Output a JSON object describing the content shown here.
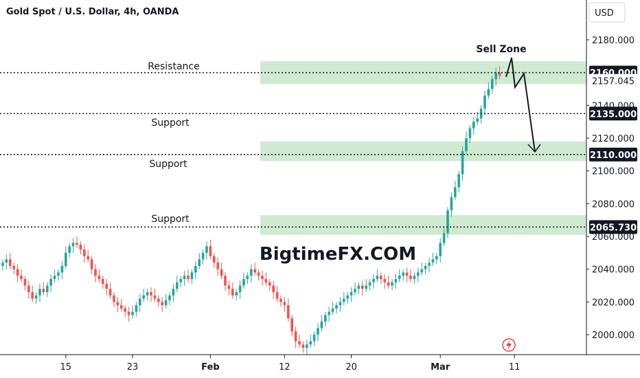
{
  "chart_data": {
    "type": "candlestick",
    "title": "Gold Spot / U.S. Dollar, 4h, OANDA",
    "currency": "USD",
    "ylim": [
      1988,
      2192
    ],
    "y_ticks": [
      2000,
      2020,
      2040,
      2060,
      2080,
      2100,
      2120,
      2140,
      2180
    ],
    "y_tick_labels": [
      "2000.000",
      "2020.000",
      "2040.000",
      "2060.000",
      "2080.000",
      "2100.000",
      "2120.000",
      "2140.000",
      "2180.000"
    ],
    "x_ticks": [
      {
        "label": "15",
        "idx": 17,
        "bold": false
      },
      {
        "label": "23",
        "idx": 35,
        "bold": false
      },
      {
        "label": "Feb",
        "idx": 56,
        "bold": true
      },
      {
        "label": "12",
        "idx": 76,
        "bold": false
      },
      {
        "label": "20",
        "idx": 94,
        "bold": false
      },
      {
        "label": "Mar",
        "idx": 118,
        "bold": true
      },
      {
        "label": "11",
        "idx": 138,
        "bold": false
      }
    ],
    "closes": [
      2044,
      2046,
      2042,
      2040,
      2036,
      2034,
      2030,
      2026,
      2022,
      2024,
      2028,
      2026,
      2030,
      2034,
      2036,
      2038,
      2042,
      2050,
      2054,
      2056,
      2055,
      2052,
      2048,
      2046,
      2040,
      2036,
      2034,
      2031,
      2028,
      2024,
      2020,
      2018,
      2016,
      2014,
      2012,
      2014,
      2018,
      2022,
      2024,
      2026,
      2024,
      2022,
      2020,
      2018,
      2021,
      2024,
      2028,
      2032,
      2034,
      2036,
      2034,
      2038,
      2042,
      2046,
      2050,
      2054,
      2048,
      2044,
      2040,
      2036,
      2030,
      2028,
      2024,
      2026,
      2030,
      2034,
      2036,
      2040,
      2038,
      2036,
      2034,
      2032,
      2030,
      2026,
      2022,
      2020,
      2018,
      2010,
      2002,
      1996,
      1994,
      1992,
      1994,
      1996,
      2000,
      2004,
      2008,
      2012,
      2014,
      2016,
      2018,
      2020,
      2022,
      2024,
      2026,
      2028,
      2030,
      2028,
      2030,
      2032,
      2034,
      2036,
      2034,
      2032,
      2030,
      2032,
      2034,
      2036,
      2038,
      2036,
      2034,
      2036,
      2038,
      2040,
      2042,
      2044,
      2046,
      2048,
      2056,
      2062,
      2076,
      2084,
      2090,
      2098,
      2112,
      2120,
      2126,
      2130,
      2132,
      2138,
      2146,
      2150,
      2156,
      2160,
      2158
    ],
    "levels": [
      {
        "name": "Resistance",
        "value": 2160.0,
        "label": "2160.000"
      },
      {
        "name": "Support",
        "value": 2135.0,
        "label": "2135.000"
      },
      {
        "name": "Support",
        "value": 2110.0,
        "label": "2110.000"
      },
      {
        "name": "Support",
        "value": 2065.73,
        "label": "2065.730"
      }
    ],
    "zones": [
      {
        "from": 2153,
        "to": 2167
      },
      {
        "from": 2106,
        "to": 2118
      },
      {
        "from": 2061,
        "to": 2073
      }
    ],
    "last_price": {
      "value": 2157.045,
      "label": "2157.045"
    },
    "annotations": {
      "sell_zone": "Sell Zone",
      "resistance": "Resistance",
      "support": "Support",
      "watermark": "BigtimeFX.COM"
    },
    "colors": {
      "up": "#26a69a",
      "down": "#ef5350",
      "zone": "#c8e6c9",
      "level": "#131722",
      "label_bg": "#131722"
    }
  }
}
